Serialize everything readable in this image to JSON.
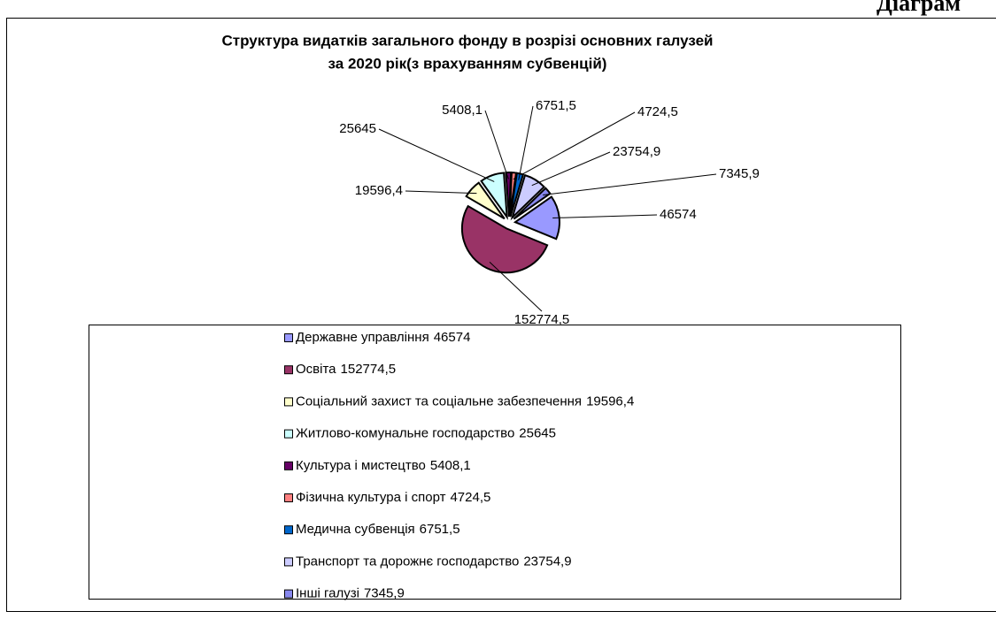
{
  "header": "Діаграм",
  "chart_data": {
    "type": "pie",
    "title": [
      "Структура видатків загального фонду в розрізі основних галузей",
      "за  2020 рік(з врахуванням субвенцій)"
    ],
    "categories": [
      "Державне управління",
      "Освіта",
      "Соціальний захист та соціальне забезпечення",
      "Житлово-комунальне господарство",
      "Культура і мистецтво",
      "Фізична культура і спорт",
      "Медична субвенція",
      "Транспорт та дорожнє господарство",
      "Інші галузі"
    ],
    "values": [
      46574,
      152774.5,
      19596.4,
      25645,
      5408.1,
      4724.5,
      6751.5,
      23754.9,
      7345.9
    ],
    "value_labels": [
      "46574",
      "152774,5",
      "19596,4",
      "25645",
      "5408,1",
      "4724,5",
      "6751,5",
      "23754,9",
      "7345,9"
    ],
    "colors": [
      "#9999ff",
      "#993366",
      "#ffffcc",
      "#ccffff",
      "#660066",
      "#ff8080",
      "#0066cc",
      "#ccccff",
      "#8888ee"
    ],
    "legend": "bottom"
  }
}
